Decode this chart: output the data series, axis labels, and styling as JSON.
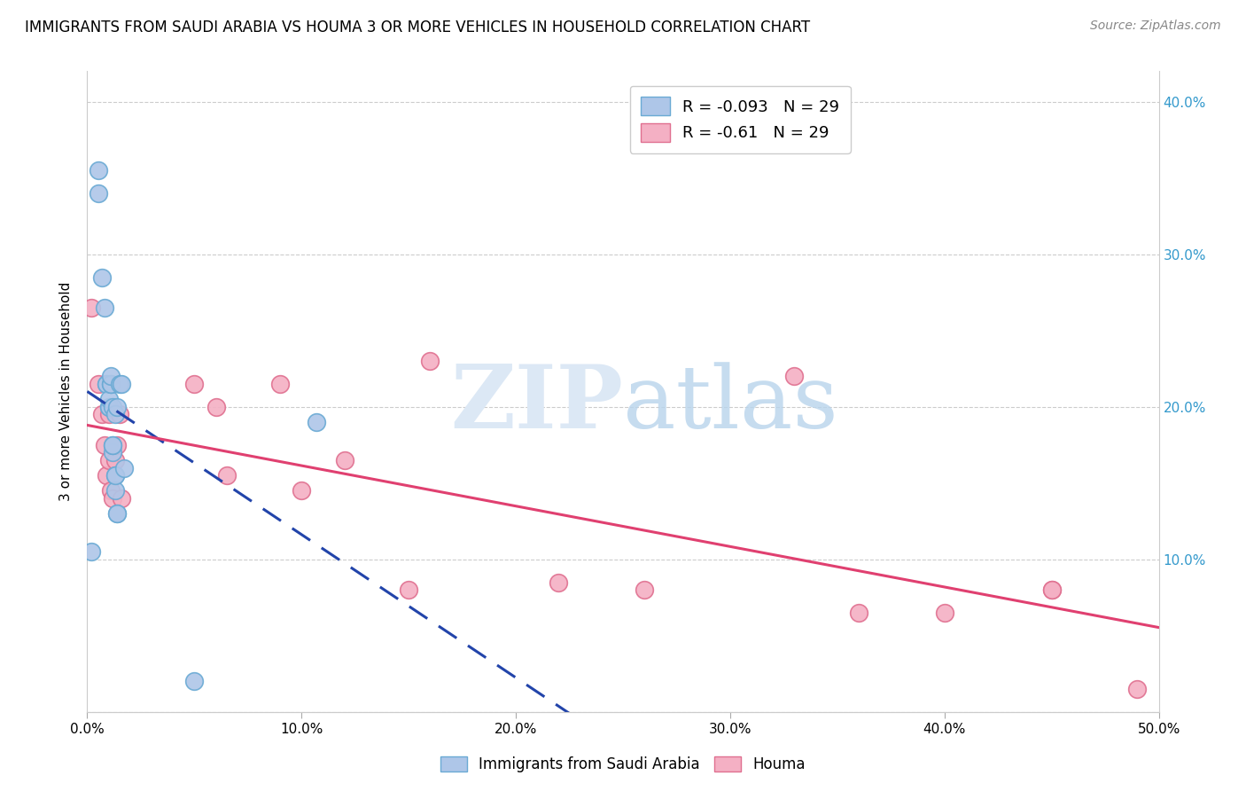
{
  "title": "IMMIGRANTS FROM SAUDI ARABIA VS HOUMA 3 OR MORE VEHICLES IN HOUSEHOLD CORRELATION CHART",
  "source_text": "Source: ZipAtlas.com",
  "ylabel": "3 or more Vehicles in Household",
  "xlim": [
    0.0,
    0.5
  ],
  "ylim": [
    0.0,
    0.42
  ],
  "saudi_color": "#aec6e8",
  "saudi_edge_color": "#6aaad4",
  "houma_color": "#f4b0c4",
  "houma_edge_color": "#e07090",
  "saudi_R": -0.093,
  "saudi_N": 29,
  "houma_R": -0.61,
  "houma_N": 29,
  "saudi_line_color": "#2244aa",
  "houma_line_color": "#e04070",
  "legend_label_saudi": "Immigrants from Saudi Arabia",
  "legend_label_houma": "Houma",
  "saudi_x": [
    0.002,
    0.005,
    0.005,
    0.007,
    0.008,
    0.009,
    0.009,
    0.01,
    0.01,
    0.01,
    0.011,
    0.011,
    0.011,
    0.012,
    0.012,
    0.012,
    0.012,
    0.013,
    0.013,
    0.013,
    0.013,
    0.014,
    0.014,
    0.014,
    0.015,
    0.016,
    0.017,
    0.05,
    0.107
  ],
  "saudi_y": [
    0.105,
    0.355,
    0.34,
    0.285,
    0.265,
    0.215,
    0.215,
    0.2,
    0.2,
    0.205,
    0.215,
    0.215,
    0.22,
    0.17,
    0.175,
    0.175,
    0.2,
    0.195,
    0.155,
    0.145,
    0.155,
    0.13,
    0.13,
    0.2,
    0.215,
    0.215,
    0.16,
    0.02,
    0.19
  ],
  "houma_x": [
    0.002,
    0.005,
    0.007,
    0.008,
    0.009,
    0.01,
    0.01,
    0.011,
    0.012,
    0.013,
    0.014,
    0.015,
    0.016,
    0.05,
    0.06,
    0.065,
    0.09,
    0.1,
    0.12,
    0.15,
    0.16,
    0.22,
    0.26,
    0.33,
    0.36,
    0.4,
    0.45,
    0.45,
    0.49
  ],
  "houma_y": [
    0.265,
    0.215,
    0.195,
    0.175,
    0.155,
    0.165,
    0.195,
    0.145,
    0.14,
    0.165,
    0.175,
    0.195,
    0.14,
    0.215,
    0.2,
    0.155,
    0.215,
    0.145,
    0.165,
    0.08,
    0.23,
    0.085,
    0.08,
    0.22,
    0.065,
    0.065,
    0.08,
    0.08,
    0.015
  ]
}
